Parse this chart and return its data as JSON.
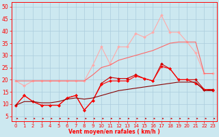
{
  "x": [
    0,
    1,
    2,
    3,
    4,
    5,
    6,
    7,
    8,
    9,
    10,
    11,
    12,
    13,
    14,
    15,
    16,
    17,
    18,
    19,
    20,
    21,
    22,
    23
  ],
  "series": [
    {
      "color": "#ffaaaa",
      "marker": "D",
      "markersize": 2,
      "linewidth": 0.8,
      "values": [
        19.5,
        17.5,
        19.5,
        19.5,
        19.5,
        19.5,
        19.5,
        19.5,
        19.5,
        26.0,
        33.5,
        26.5,
        33.5,
        33.5,
        39.0,
        37.5,
        39.5,
        46.5,
        39.5,
        39.5,
        35.5,
        31.0,
        22.5,
        22.5
      ]
    },
    {
      "color": "#cc0000",
      "marker": "D",
      "markersize": 2,
      "linewidth": 0.8,
      "values": [
        9.5,
        13.5,
        11.0,
        9.5,
        9.5,
        9.5,
        12.5,
        13.5,
        7.5,
        11.5,
        18.5,
        21.0,
        20.5,
        20.5,
        22.0,
        20.5,
        19.5,
        26.5,
        24.5,
        20.0,
        20.0,
        20.0,
        16.0,
        16.0
      ]
    },
    {
      "color": "#ff0000",
      "marker": "D",
      "markersize": 2,
      "linewidth": 0.8,
      "values": [
        9.5,
        13.5,
        11.0,
        9.5,
        9.5,
        9.5,
        12.5,
        13.5,
        7.5,
        11.5,
        18.0,
        19.5,
        19.5,
        19.5,
        21.5,
        20.5,
        19.5,
        25.5,
        24.5,
        20.0,
        20.0,
        18.5,
        16.0,
        15.5
      ]
    },
    {
      "color": "#880000",
      "marker": null,
      "markersize": 0,
      "linewidth": 0.8,
      "values": [
        9.5,
        11.0,
        11.0,
        10.5,
        10.5,
        11.0,
        12.0,
        12.5,
        12.0,
        12.5,
        13.5,
        14.5,
        15.5,
        16.0,
        16.5,
        17.0,
        17.5,
        18.0,
        18.5,
        19.0,
        19.0,
        19.0,
        15.5,
        15.5
      ]
    },
    {
      "color": "#ff6666",
      "marker": null,
      "markersize": 0,
      "linewidth": 0.8,
      "values": [
        19.5,
        19.5,
        19.5,
        19.5,
        19.5,
        19.5,
        19.5,
        19.5,
        19.5,
        22.0,
        25.0,
        26.0,
        28.0,
        29.0,
        30.0,
        31.0,
        32.0,
        33.5,
        35.0,
        35.5,
        35.5,
        35.5,
        22.5,
        22.5
      ]
    }
  ],
  "xlabel": "Vent moyen/en rafales ( km/h )",
  "ylabel_ticks": [
    5,
    10,
    15,
    20,
    25,
    30,
    35,
    40,
    45,
    50
  ],
  "ylim": [
    3,
    52
  ],
  "xlim": [
    -0.5,
    23.5
  ],
  "bg_color": "#cce8f0",
  "grid_color": "#aaccdd",
  "axis_color": "#ff0000",
  "tick_color": "#ff0000",
  "xlabel_color": "#ff0000",
  "arrow_color": "#cc0000"
}
